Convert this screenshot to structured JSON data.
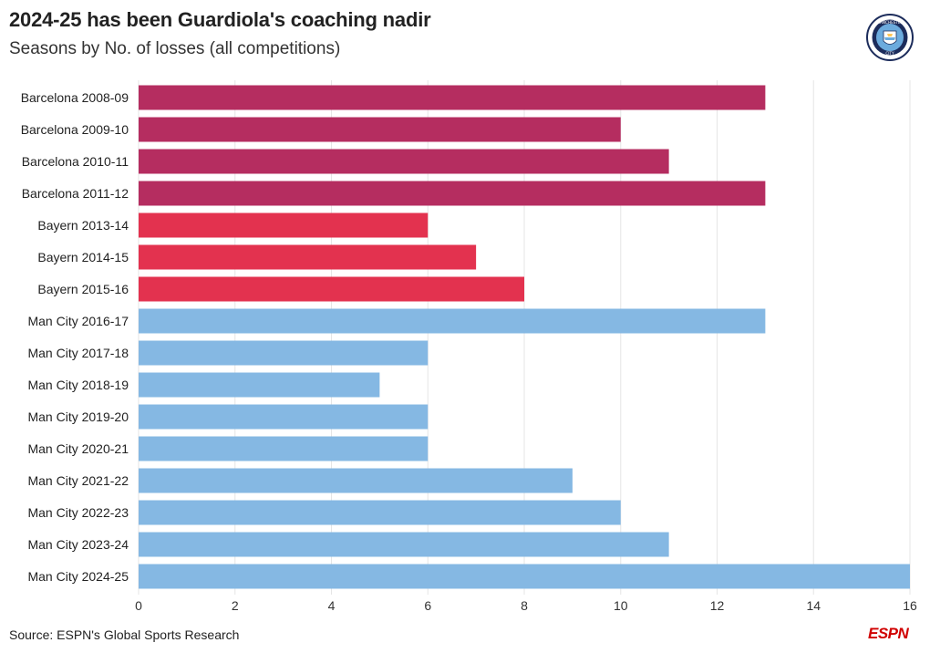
{
  "header": {
    "title": "2024-25 has been Guardiola's coaching nadir",
    "subtitle": "Seasons by No. of losses (all competitions)"
  },
  "crest": {
    "icon": "manchester-city-crest-icon",
    "text_top": "MANCHESTER",
    "text_bottom": "CITY",
    "colors": {
      "ring": "#1c2c5b",
      "inner": "#6cabdd"
    }
  },
  "footer": {
    "source": "Source: ESPN's Global Sports Research",
    "logo_icon": "espn-logo-icon",
    "logo_text": "ESPN",
    "logo_color": "#d00000"
  },
  "colors": {
    "barcelona": "#b52d60",
    "bayern": "#e3324f",
    "mancity": "#85b8e3",
    "grid": "#e6e6e6"
  },
  "chart_data": {
    "type": "bar",
    "orientation": "horizontal",
    "title": "2024-25 has been Guardiola's coaching nadir",
    "subtitle": "Seasons by No. of losses (all competitions)",
    "xlabel": "",
    "ylabel": "",
    "xlim": [
      0,
      16
    ],
    "xticks": [
      0,
      2,
      4,
      6,
      8,
      10,
      12,
      14,
      16
    ],
    "grid": true,
    "categories": [
      "Barcelona 2008-09",
      "Barcelona 2009-10",
      "Barcelona 2010-11",
      "Barcelona 2011-12",
      "Bayern 2013-14",
      "Bayern 2014-15",
      "Bayern 2015-16",
      "Man City 2016-17",
      "Man City 2017-18",
      "Man City 2018-19",
      "Man City 2019-20",
      "Man City 2020-21",
      "Man City 2021-22",
      "Man City 2022-23",
      "Man City 2023-24",
      "Man City 2024-25"
    ],
    "values": [
      13,
      10,
      11,
      13,
      6,
      7,
      8,
      13,
      6,
      5,
      6,
      6,
      9,
      10,
      11,
      16
    ],
    "groups": [
      "barcelona",
      "barcelona",
      "barcelona",
      "barcelona",
      "bayern",
      "bayern",
      "bayern",
      "mancity",
      "mancity",
      "mancity",
      "mancity",
      "mancity",
      "mancity",
      "mancity",
      "mancity",
      "mancity"
    ]
  }
}
